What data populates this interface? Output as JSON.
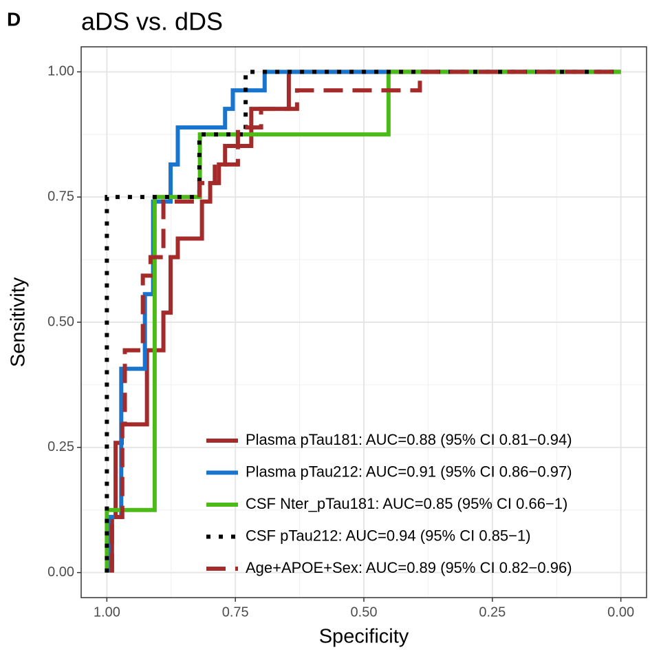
{
  "chart_data": {
    "type": "step-line",
    "panel_label": "D",
    "title": "aDS vs. dDS",
    "x_label": "Specificity",
    "y_label": "Sensitivity",
    "xlim": [
      1.05,
      -0.05
    ],
    "ylim": [
      -0.05,
      1.05
    ],
    "xticks": [
      {
        "value": 1,
        "label": "1.00"
      },
      {
        "value": 0.75,
        "label": "0.75"
      },
      {
        "value": 0.5,
        "label": "0.50"
      },
      {
        "value": 0.25,
        "label": "0.25"
      },
      {
        "value": 0,
        "label": "0.00"
      }
    ],
    "yticks": [
      {
        "value": 0,
        "label": "0.00"
      },
      {
        "value": 0.25,
        "label": "0.25"
      },
      {
        "value": 0.5,
        "label": "0.50"
      },
      {
        "value": 0.75,
        "label": "0.75"
      },
      {
        "value": 1,
        "label": "1.00"
      }
    ],
    "grid": true,
    "legend_position": "bottom-right",
    "series": [
      {
        "name": "Plasma pTau181: AUC=0.88 (95% CI 0.81−0.94)",
        "color": "#a52a2a",
        "dash": "solid",
        "x": [
          0.99,
          0.99,
          0.983,
          0.983,
          0.971,
          0.971,
          0.922,
          0.922,
          0.89,
          0.89,
          0.876,
          0.876,
          0.862,
          0.862,
          0.815,
          0.815,
          0.799,
          0.799,
          0.782,
          0.782,
          0.77,
          0.77,
          0.719,
          0.719,
          0.646,
          0.646,
          0
        ],
        "values": [
          0,
          0.111,
          0.111,
          0.259,
          0.259,
          0.296,
          0.296,
          0.444,
          0.444,
          0.519,
          0.519,
          0.63,
          0.63,
          0.667,
          0.667,
          0.741,
          0.741,
          0.778,
          0.778,
          0.815,
          0.815,
          0.852,
          0.852,
          0.926,
          0.926,
          1,
          1
        ]
      },
      {
        "name": "Plasma pTau212: AUC=0.91 (95% CI 0.86−0.97)",
        "color": "#1874cd",
        "dash": "solid",
        "x": [
          0.997,
          0.997,
          0.972,
          0.972,
          0.926,
          0.926,
          0.91,
          0.91,
          0.876,
          0.876,
          0.862,
          0.862,
          0.77,
          0.77,
          0.755,
          0.755,
          0.693,
          0.693,
          0
        ],
        "values": [
          0,
          0.111,
          0.111,
          0.407,
          0.407,
          0.556,
          0.556,
          0.741,
          0.741,
          0.815,
          0.815,
          0.889,
          0.889,
          0.926,
          0.926,
          0.963,
          0.963,
          1,
          1
        ]
      },
      {
        "name": "CSF Nter_pTau181: AUC=0.85 (95% CI 0.66−1)",
        "color": "#4cbb17",
        "dash": "solid",
        "x": [
          1,
          1,
          0.907,
          0.907,
          0.819,
          0.819,
          0.452,
          0.452,
          0
        ],
        "values": [
          0,
          0.125,
          0.125,
          0.75,
          0.75,
          0.875,
          0.875,
          1,
          1
        ]
      },
      {
        "name": "CSF pTau212: AUC=0.94 (95% CI 0.85−1)",
        "color": "#000000",
        "dash": "dotted",
        "x": [
          1,
          1,
          0.82,
          0.82,
          0.73,
          0.73,
          0
        ],
        "values": [
          0,
          0.75,
          0.75,
          0.875,
          0.875,
          1,
          1
        ]
      },
      {
        "name": "Age+APOE+Sex: AUC=0.89 (95% CI 0.82−0.96)",
        "color": "#a52a2a",
        "dash": "dashed",
        "x": [
          0.99,
          0.99,
          0.97,
          0.97,
          0.965,
          0.965,
          0.93,
          0.93,
          0.915,
          0.915,
          0.89,
          0.89,
          0.82,
          0.82,
          0.79,
          0.79,
          0.745,
          0.745,
          0.7,
          0.7,
          0.63,
          0.63,
          0.391,
          0.391,
          0
        ],
        "values": [
          0,
          0.111,
          0.111,
          0.296,
          0.296,
          0.444,
          0.444,
          0.593,
          0.593,
          0.63,
          0.63,
          0.741,
          0.741,
          0.778,
          0.778,
          0.815,
          0.815,
          0.889,
          0.889,
          0.926,
          0.926,
          0.963,
          0.963,
          1,
          1
        ]
      }
    ]
  }
}
